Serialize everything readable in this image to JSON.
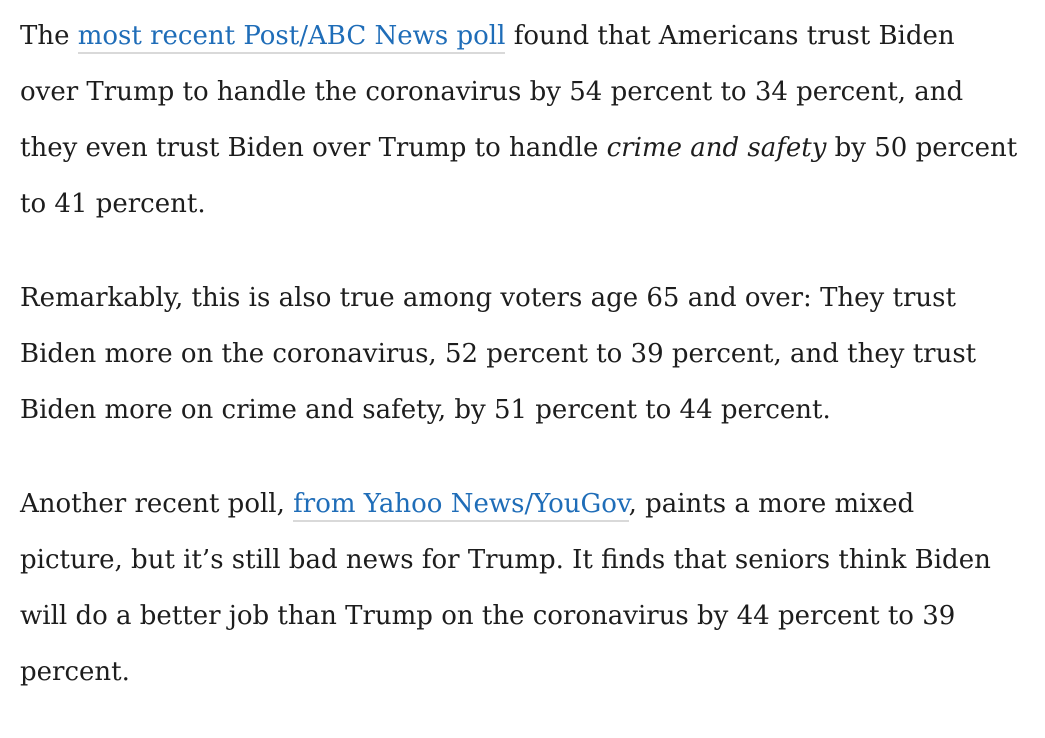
{
  "article": {
    "background_color": "#ffffff",
    "text_color": "#1d1d1d",
    "link_color": "#1f6db8",
    "link_underline_color": "#d9d9d9",
    "paragraphs": [
      {
        "segments": [
          {
            "style": "normal",
            "text": "The "
          },
          {
            "style": "link",
            "name": "post-abc-news-poll-link",
            "text": "most recent Post/ABC News poll"
          },
          {
            "style": "normal",
            "text": " found that Americans trust Biden over Trump to handle the coronavirus by 54 percent to 34 percent, and they even trust Biden over Trump to handle "
          },
          {
            "style": "italic",
            "text": "crime and safety"
          },
          {
            "style": "normal",
            "text": " by 50 percent to 41 percent."
          }
        ]
      },
      {
        "segments": [
          {
            "style": "normal",
            "text": "Remarkably, this is also true among voters age 65 and over: They trust Biden more on the coronavirus, 52 percent to 39 percent, and they trust Biden more on crime and safety, by 51 percent to 44 percent."
          }
        ]
      },
      {
        "segments": [
          {
            "style": "normal",
            "text": "Another recent poll, "
          },
          {
            "style": "link",
            "name": "yahoo-news-yougov-poll-link",
            "text": "from Yahoo News/YouGov"
          },
          {
            "style": "normal",
            "text": ", paints a more mixed picture, but it’s still bad news for Trump. It finds that seniors think Biden will do a better job than Trump on the coronavirus by 44 percent to 39 percent."
          }
        ]
      }
    ]
  }
}
